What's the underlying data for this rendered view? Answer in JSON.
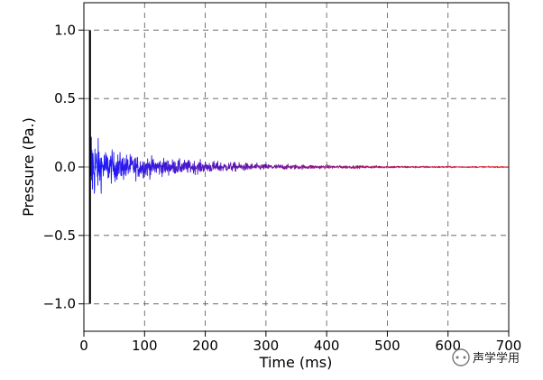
{
  "chart_data": {
    "type": "line",
    "title": "",
    "xlabel": "Time (ms)",
    "ylabel": "Pressure (Pa.)",
    "xlim": [
      0,
      700
    ],
    "ylim": [
      -1.2,
      1.2
    ],
    "xticks": [
      0,
      100,
      200,
      300,
      400,
      500,
      600,
      700
    ],
    "yticks": [
      -1.0,
      -0.5,
      0.0,
      0.5,
      1.0
    ],
    "ytick_labels": [
      "−1.0",
      "−0.5",
      "0.0",
      "0.5",
      "1.0"
    ],
    "grid": true,
    "grid_style": "dashed",
    "direct_sound": {
      "x": 10,
      "y_max": 1.0,
      "y_min": -1.0,
      "color": "#000000"
    },
    "series": [
      {
        "description_type": "decaying impulse response (noise-like)",
        "start_ms": 10,
        "end_ms": 700,
        "envelope_ms": [
          10,
          12,
          15,
          20,
          30,
          50,
          100,
          150,
          200,
          300,
          400,
          500,
          600,
          700
        ],
        "envelope_amp": [
          0.45,
          0.35,
          0.25,
          0.2,
          0.13,
          0.1,
          0.07,
          0.05,
          0.04,
          0.02,
          0.012,
          0.008,
          0.005,
          0.004
        ],
        "color_start": "#1a1aff",
        "color_end": "#e8101a"
      }
    ]
  },
  "watermark": {
    "text": "声学学用"
  }
}
